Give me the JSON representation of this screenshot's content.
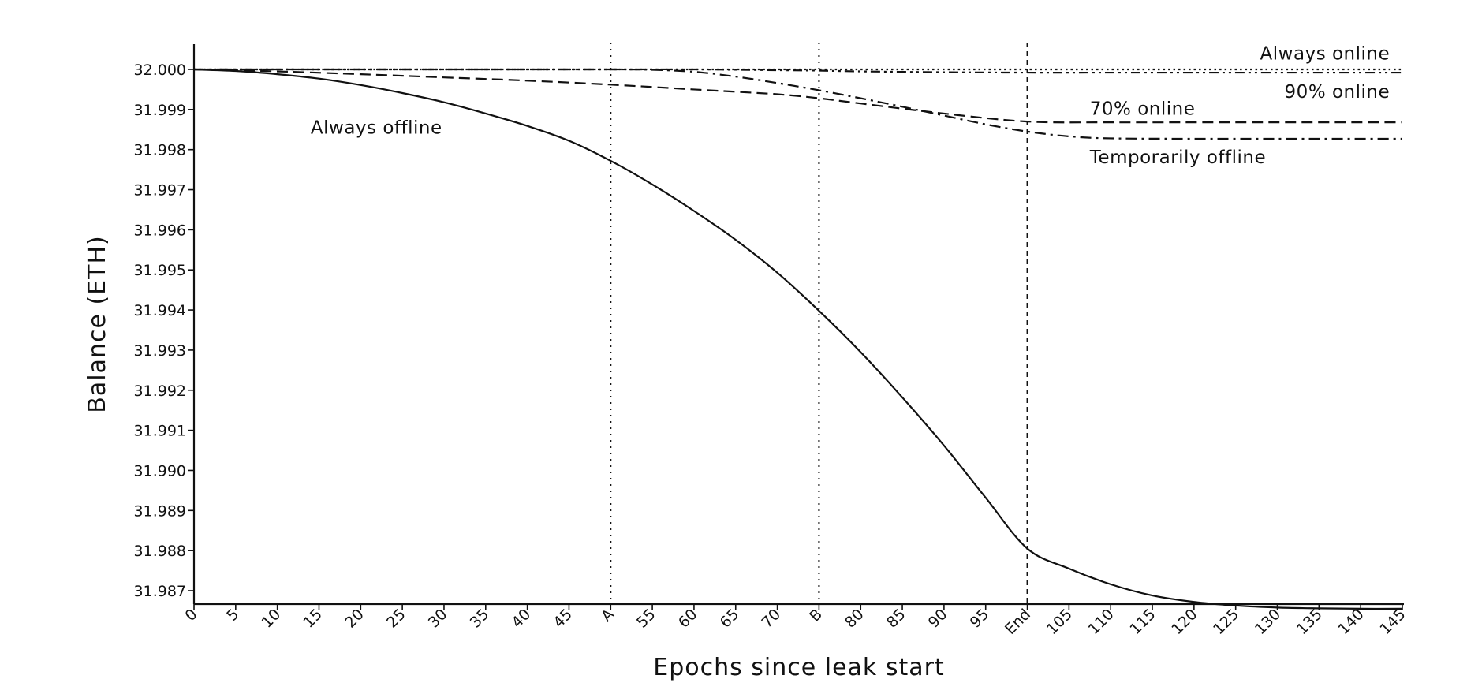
{
  "chart_data": {
    "type": "line",
    "xlabel": "Epochs since leak start",
    "ylabel": "Balance (ETH)",
    "xlim": [
      0,
      145
    ],
    "ylim": [
      31.98675,
      32.0006
    ],
    "x_ticks": [
      {
        "value": 0,
        "label": "0"
      },
      {
        "value": 5,
        "label": "5"
      },
      {
        "value": 10,
        "label": "10"
      },
      {
        "value": 15,
        "label": "15"
      },
      {
        "value": 20,
        "label": "20"
      },
      {
        "value": 25,
        "label": "25"
      },
      {
        "value": 30,
        "label": "30"
      },
      {
        "value": 35,
        "label": "35"
      },
      {
        "value": 40,
        "label": "40"
      },
      {
        "value": 45,
        "label": "45"
      },
      {
        "value": 50,
        "label": "A"
      },
      {
        "value": 55,
        "label": "55"
      },
      {
        "value": 60,
        "label": "60"
      },
      {
        "value": 65,
        "label": "65"
      },
      {
        "value": 70,
        "label": "70"
      },
      {
        "value": 75,
        "label": "B"
      },
      {
        "value": 80,
        "label": "80"
      },
      {
        "value": 85,
        "label": "85"
      },
      {
        "value": 90,
        "label": "90"
      },
      {
        "value": 95,
        "label": "95"
      },
      {
        "value": 100,
        "label": "End"
      },
      {
        "value": 105,
        "label": "105"
      },
      {
        "value": 110,
        "label": "110"
      },
      {
        "value": 115,
        "label": "115"
      },
      {
        "value": 120,
        "label": "120"
      },
      {
        "value": 125,
        "label": "125"
      },
      {
        "value": 130,
        "label": "130"
      },
      {
        "value": 135,
        "label": "135"
      },
      {
        "value": 140,
        "label": "140"
      },
      {
        "value": 145,
        "label": "145"
      }
    ],
    "y_ticks": [
      {
        "value": 32.0,
        "label": "32.000"
      },
      {
        "value": 31.999,
        "label": "31.999"
      },
      {
        "value": 31.998,
        "label": "31.998"
      },
      {
        "value": 31.997,
        "label": "31.997"
      },
      {
        "value": 31.996,
        "label": "31.996"
      },
      {
        "value": 31.995,
        "label": "31.995"
      },
      {
        "value": 31.994,
        "label": "31.994"
      },
      {
        "value": 31.993,
        "label": "31.993"
      },
      {
        "value": 31.992,
        "label": "31.992"
      },
      {
        "value": 31.991,
        "label": "31.991"
      },
      {
        "value": 31.99,
        "label": "31.990"
      },
      {
        "value": 31.989,
        "label": "31.989"
      },
      {
        "value": 31.988,
        "label": "31.988"
      },
      {
        "value": 31.987,
        "label": "31.987"
      }
    ],
    "vertical_markers": [
      {
        "label": "A",
        "x": 50,
        "style": "dotted"
      },
      {
        "label": "B",
        "x": 75,
        "style": "dotted"
      },
      {
        "label": "End",
        "x": 100,
        "style": "dashed"
      }
    ],
    "series": [
      {
        "name": "Always online",
        "style": "dotted",
        "x": [
          0,
          145
        ],
        "y": [
          32.0,
          32.0
        ],
        "label_anchor": {
          "x": 143.5,
          "y": 32.0004
        }
      },
      {
        "name": "90% online",
        "style": "dash-dot-dot",
        "x": [
          0,
          10,
          20,
          30,
          40,
          50,
          60,
          70,
          75,
          80,
          90,
          100,
          110,
          120,
          130,
          145
        ],
        "y": [
          32.0,
          32.0,
          32.0,
          32.0,
          32.0,
          32.0,
          32.0,
          31.99998,
          31.99997,
          31.99995,
          31.99993,
          31.99992,
          31.99992,
          31.99992,
          31.99992,
          31.99992
        ],
        "label_anchor": {
          "x": 143.5,
          "y": 31.99945
        }
      },
      {
        "name": "70% online",
        "style": "dashed",
        "x": [
          0,
          10,
          20,
          30,
          40,
          50,
          60,
          70,
          75,
          80,
          90,
          100,
          110,
          120,
          130,
          145
        ],
        "y": [
          32.0,
          31.99995,
          31.99988,
          31.9998,
          31.99972,
          31.99962,
          31.9995,
          31.99938,
          31.99928,
          31.99915,
          31.9989,
          31.9987,
          31.99868,
          31.99868,
          31.99868,
          31.99868
        ],
        "label_anchor": {
          "x": 107.5,
          "y": 31.99903
        }
      },
      {
        "name": "Temporarily offline",
        "style": "dash-dot",
        "x": [
          0,
          10,
          20,
          30,
          40,
          50,
          55,
          60,
          65,
          70,
          75,
          80,
          85,
          90,
          95,
          100,
          105,
          110,
          120,
          130,
          145
        ],
        "y": [
          32.0,
          32.0,
          32.0,
          32.0,
          32.0,
          32.0,
          31.99999,
          31.99994,
          31.99982,
          31.99966,
          31.99948,
          31.99928,
          31.99907,
          31.99885,
          31.99863,
          31.99845,
          31.99833,
          31.99828,
          31.99827,
          31.99827,
          31.99827
        ],
        "label_anchor": {
          "x": 107.5,
          "y": 31.99782
        }
      },
      {
        "name": "Always offline",
        "style": "solid",
        "x": [
          0,
          5,
          10,
          15,
          20,
          25,
          30,
          35,
          40,
          45,
          50,
          55,
          60,
          65,
          70,
          75,
          80,
          85,
          90,
          95,
          100,
          105,
          110,
          115,
          120,
          125,
          130,
          135,
          140,
          145
        ],
        "y": [
          32.0,
          31.99996,
          31.99988,
          31.99977,
          31.99961,
          31.99941,
          31.99918,
          31.9989,
          31.99859,
          31.99822,
          31.99772,
          31.99713,
          31.99647,
          31.99575,
          31.99493,
          31.99398,
          31.99295,
          31.99182,
          31.99062,
          31.98932,
          31.98805,
          31.98755,
          31.98716,
          31.98688,
          31.98672,
          31.98663,
          31.98658,
          31.98656,
          31.98655,
          31.98655
        ],
        "label_anchor": {
          "x": 14,
          "y": 31.99855
        }
      }
    ]
  }
}
